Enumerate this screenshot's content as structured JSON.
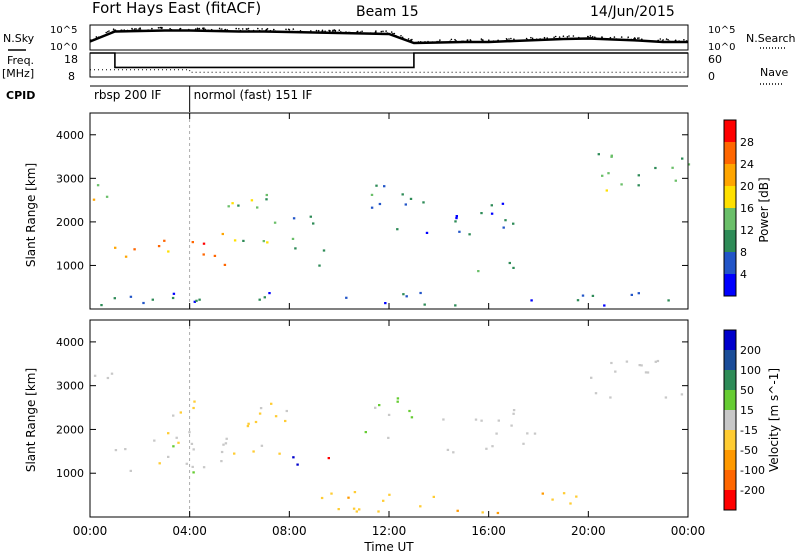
{
  "header": {
    "title": "Fort Hays East (fitACF)",
    "beam": "Beam 15",
    "date": "14/Jun/2015"
  },
  "left_labels": {
    "nsky": "N.Sky",
    "freq": "Freq.",
    "freq_unit": "[MHz]",
    "cpid": "CPID"
  },
  "right_labels": {
    "nsearch": "N.Search",
    "nave": "Nave"
  },
  "cpid_modes": [
    {
      "label": "rbsp 200 IF",
      "start_hour": 0
    },
    {
      "label": "normol (fast) 151 IF",
      "start_hour": 4
    }
  ],
  "colors": {
    "power": [
      "#0000ff",
      "#2255c8",
      "#2e8b57",
      "#6abf69",
      "#ffe000",
      "#ffa500",
      "#ff6600",
      "#ff0000"
    ],
    "velocity": [
      "#0000cc",
      "#1a4d99",
      "#2e8b57",
      "#66cc33",
      "#c8c8c8",
      "#ffcc33",
      "#ff9900",
      "#ff6600",
      "#ff0000"
    ]
  },
  "chart_data": [
    {
      "type": "line",
      "name": "noise",
      "x": [
        0,
        1,
        2,
        3,
        4,
        5,
        6,
        7,
        8,
        9,
        10,
        11,
        12,
        13,
        14,
        15,
        16,
        17,
        18,
        19,
        20,
        21,
        22,
        23,
        24
      ],
      "series": [
        {
          "values": [
            1.7,
            3.7,
            3.8,
            3.9,
            3.9,
            3.8,
            3.7,
            3.7,
            3.6,
            3.5,
            3.4,
            3.3,
            3.2,
            1.4,
            1.5,
            1.6,
            1.6,
            1.8,
            2.0,
            2.2,
            2.3,
            2.1,
            1.9,
            1.6,
            1.6
          ]
        }
      ],
      "left_ticks": [
        "10^5",
        "10^0"
      ],
      "right_ticks": [
        "10^5",
        "10^0"
      ],
      "ylim": [
        0,
        5
      ]
    },
    {
      "type": "line",
      "name": "frequency",
      "x": [
        0,
        1,
        4,
        13,
        24
      ],
      "series": [
        {
          "values": [
            18,
            12,
            12,
            18,
            18
          ]
        },
        {
          "values": [
            11,
            11,
            10,
            10,
            10
          ]
        }
      ],
      "left_ticks": [
        "18",
        "8"
      ],
      "right_ticks": [
        "60",
        "0"
      ],
      "ylim": [
        8,
        18
      ]
    },
    {
      "type": "heatmap",
      "name": "power",
      "ylabel": "Slant Range [km]",
      "yticks": [
        1000,
        2000,
        3000,
        4000
      ],
      "ylim": [
        0,
        4500
      ],
      "xlim": [
        0,
        24
      ],
      "colorbar_label": "Power [dB]",
      "colorbar_ticks": [
        4,
        8,
        12,
        16,
        20,
        24,
        28
      ],
      "clim": [
        0,
        32
      ],
      "regions": [
        {
          "t0": 0.0,
          "t1": 1.0,
          "r0": 2500,
          "r1": 3300,
          "v": 20
        },
        {
          "t0": 0.8,
          "t1": 2.5,
          "r0": 1000,
          "r1": 1500,
          "v": 22
        },
        {
          "t0": 2.5,
          "t1": 5.5,
          "r0": 1000,
          "r1": 1800,
          "v": 24
        },
        {
          "t0": 5.5,
          "t1": 8.0,
          "r0": 1500,
          "r1": 2700,
          "v": 16
        },
        {
          "t0": 8.0,
          "t1": 9.5,
          "r0": 1000,
          "r1": 2200,
          "v": 12
        },
        {
          "t0": 11.0,
          "t1": 13.0,
          "r0": 1800,
          "r1": 3000,
          "v": 8
        },
        {
          "t0": 13.0,
          "t1": 17.5,
          "r0": 1700,
          "r1": 2500,
          "v": 6
        },
        {
          "t0": 15.0,
          "t1": 17.0,
          "r0": 800,
          "r1": 1200,
          "v": 14
        },
        {
          "t0": 20.0,
          "t1": 24.0,
          "r0": 2700,
          "r1": 3600,
          "v": 14
        },
        {
          "t0": 0.0,
          "t1": 24.0,
          "r0": 100,
          "r1": 400,
          "v": 6
        }
      ]
    },
    {
      "type": "heatmap",
      "name": "velocity",
      "ylabel": "Slant Range [km]",
      "yticks": [
        1000,
        2000,
        3000,
        4000
      ],
      "ylim": [
        0,
        4500
      ],
      "xlim": [
        0,
        24
      ],
      "colorbar_label": "Velocity [m s^-1]",
      "colorbar_ticks": [
        200,
        100,
        50,
        15,
        -15,
        -50,
        -100,
        -200
      ],
      "clim": [
        -250,
        250
      ],
      "regions": [
        {
          "t0": 0.0,
          "t1": 1.0,
          "r0": 2600,
          "r1": 3300,
          "v": 0
        },
        {
          "t0": 0.8,
          "t1": 5.5,
          "r0": 1000,
          "r1": 1800,
          "v": 0
        },
        {
          "t0": 3.0,
          "t1": 8.0,
          "r0": 1400,
          "r1": 2700,
          "v": -40
        },
        {
          "t0": 8.0,
          "t1": 9.2,
          "r0": 1200,
          "r1": 1600,
          "v": 220
        },
        {
          "t0": 9.5,
          "t1": 10.0,
          "r0": 1300,
          "r1": 1800,
          "v": -220
        },
        {
          "t0": 11.0,
          "t1": 13.0,
          "r0": 1800,
          "r1": 3000,
          "v": 40
        },
        {
          "t0": 14.0,
          "t1": 18.0,
          "r0": 1500,
          "r1": 2500,
          "v": 0
        },
        {
          "t0": 20.0,
          "t1": 24.0,
          "r0": 2700,
          "r1": 3600,
          "v": 0
        },
        {
          "t0": 9.0,
          "t1": 20.0,
          "r0": 100,
          "r1": 600,
          "v": -60
        }
      ]
    }
  ],
  "x_axis": {
    "label": "Time UT",
    "ticks": [
      "00:00",
      "04:00",
      "08:00",
      "12:00",
      "16:00",
      "20:00",
      "00:00"
    ]
  }
}
